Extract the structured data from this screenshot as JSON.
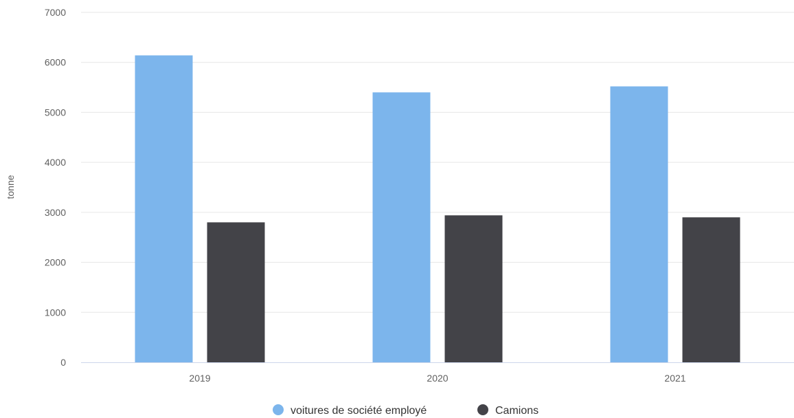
{
  "chart_data": {
    "type": "bar",
    "categories": [
      "2019",
      "2020",
      "2021"
    ],
    "series": [
      {
        "name": "voitures de société employé",
        "values": [
          6140,
          5400,
          5520
        ],
        "color": "#7cb5ec"
      },
      {
        "name": "Camions",
        "values": [
          2800,
          2940,
          2900
        ],
        "color": "#434348"
      }
    ],
    "title": "",
    "xlabel": "",
    "ylabel": "tonne",
    "ylim": [
      0,
      7000
    ],
    "yticks": [
      0,
      1000,
      2000,
      3000,
      4000,
      5000,
      6000,
      7000
    ],
    "grid": true,
    "legend_position": "bottom-center"
  }
}
